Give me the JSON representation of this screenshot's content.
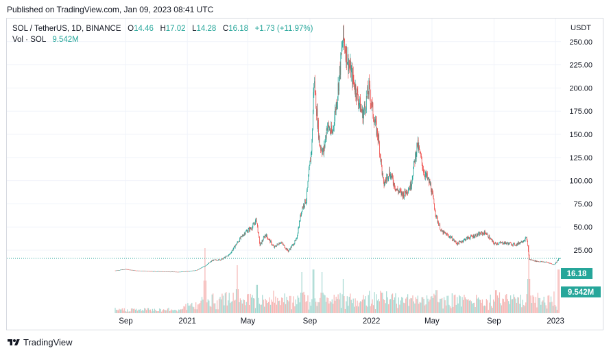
{
  "published": "Published on TradingView.com, Jan 09, 2023 08:41 UTC",
  "legend": {
    "symbol": "SOL / TetherUS, 1D, BINANCE",
    "o_label": "O",
    "o": "14.46",
    "h_label": "H",
    "h": "17.02",
    "l_label": "L",
    "l": "14.28",
    "c_label": "C",
    "c": "16.18",
    "change": "+1.73 (+11.97%)",
    "vol_label": "Vol · SOL",
    "vol": "9.542M"
  },
  "footer": {
    "brand": "TradingView"
  },
  "colors": {
    "up": "#26a69a",
    "down": "#ef5350",
    "grid": "#f0f3fa",
    "axis_text": "#131722"
  },
  "chart_data": {
    "type": "candlestick",
    "currency": "USDT",
    "y_ticks": [
      25,
      50,
      75,
      100,
      125,
      150,
      175,
      200,
      225,
      250
    ],
    "y_tick_labels": [
      "25.00",
      "50.00",
      "75.00",
      "100.00",
      "125.00",
      "150.00",
      "175.00",
      "200.00",
      "225.00",
      "250.00"
    ],
    "ylim": [
      -43,
      275
    ],
    "x_ticks": [
      {
        "label": "Sep",
        "date": "2020-09-01"
      },
      {
        "label": "2021",
        "date": "2021-01-01"
      },
      {
        "label": "May",
        "date": "2021-05-01"
      },
      {
        "label": "Sep",
        "date": "2021-09-01"
      },
      {
        "label": "2022",
        "date": "2022-01-01"
      },
      {
        "label": "May",
        "date": "2022-05-01"
      },
      {
        "label": "Sep",
        "date": "2022-09-01"
      },
      {
        "label": "2023",
        "date": "2023-01-01"
      }
    ],
    "last_price": 16.18,
    "last_price_label": "16.18",
    "last_volume_label": "9.542M",
    "price_series": [
      {
        "date": "2020-08-11",
        "close": 3.0
      },
      {
        "date": "2020-09-01",
        "close": 4.5
      },
      {
        "date": "2020-09-20",
        "close": 3.0
      },
      {
        "date": "2020-10-15",
        "close": 2.3
      },
      {
        "date": "2020-11-15",
        "close": 2.0
      },
      {
        "date": "2020-12-15",
        "close": 1.6
      },
      {
        "date": "2021-01-05",
        "close": 2.3
      },
      {
        "date": "2021-01-20",
        "close": 3.5
      },
      {
        "date": "2021-02-05",
        "close": 8.0
      },
      {
        "date": "2021-02-20",
        "close": 14.0
      },
      {
        "date": "2021-03-10",
        "close": 15.0
      },
      {
        "date": "2021-03-25",
        "close": 20.0
      },
      {
        "date": "2021-04-10",
        "close": 33.0
      },
      {
        "date": "2021-04-25",
        "close": 44.0
      },
      {
        "date": "2021-05-10",
        "close": 50.0
      },
      {
        "date": "2021-05-18",
        "close": 58.0
      },
      {
        "date": "2021-05-25",
        "close": 30.0
      },
      {
        "date": "2021-06-05",
        "close": 42.0
      },
      {
        "date": "2021-06-22",
        "close": 28.0
      },
      {
        "date": "2021-07-05",
        "close": 34.0
      },
      {
        "date": "2021-07-20",
        "close": 24.0
      },
      {
        "date": "2021-08-05",
        "close": 36.0
      },
      {
        "date": "2021-08-16",
        "close": 70.0
      },
      {
        "date": "2021-08-25",
        "close": 80.0
      },
      {
        "date": "2021-09-05",
        "close": 140.0
      },
      {
        "date": "2021-09-09",
        "close": 210.0
      },
      {
        "date": "2021-09-20",
        "close": 140.0
      },
      {
        "date": "2021-09-28",
        "close": 130.0
      },
      {
        "date": "2021-10-05",
        "close": 160.0
      },
      {
        "date": "2021-10-15",
        "close": 150.0
      },
      {
        "date": "2021-10-25",
        "close": 190.0
      },
      {
        "date": "2021-11-06",
        "close": 255.0
      },
      {
        "date": "2021-11-15",
        "close": 230.0
      },
      {
        "date": "2021-11-25",
        "close": 210.0
      },
      {
        "date": "2021-12-05",
        "close": 190.0
      },
      {
        "date": "2021-12-15",
        "close": 170.0
      },
      {
        "date": "2021-12-27",
        "close": 200.0
      },
      {
        "date": "2022-01-05",
        "close": 170.0
      },
      {
        "date": "2022-01-15",
        "close": 145.0
      },
      {
        "date": "2022-01-25",
        "close": 95.0
      },
      {
        "date": "2022-02-05",
        "close": 110.0
      },
      {
        "date": "2022-02-20",
        "close": 90.0
      },
      {
        "date": "2022-03-05",
        "close": 85.0
      },
      {
        "date": "2022-03-20",
        "close": 95.0
      },
      {
        "date": "2022-04-02",
        "close": 140.0
      },
      {
        "date": "2022-04-15",
        "close": 110.0
      },
      {
        "date": "2022-04-28",
        "close": 95.0
      },
      {
        "date": "2022-05-10",
        "close": 60.0
      },
      {
        "date": "2022-05-20",
        "close": 45.0
      },
      {
        "date": "2022-06-05",
        "close": 40.0
      },
      {
        "date": "2022-06-20",
        "close": 32.0
      },
      {
        "date": "2022-07-10",
        "close": 38.0
      },
      {
        "date": "2022-08-01",
        "close": 42.0
      },
      {
        "date": "2022-08-15",
        "close": 44.0
      },
      {
        "date": "2022-09-01",
        "close": 32.0
      },
      {
        "date": "2022-09-20",
        "close": 33.0
      },
      {
        "date": "2022-10-15",
        "close": 31.0
      },
      {
        "date": "2022-11-05",
        "close": 38.0
      },
      {
        "date": "2022-11-10",
        "close": 15.0
      },
      {
        "date": "2022-11-25",
        "close": 13.0
      },
      {
        "date": "2022-12-15",
        "close": 12.0
      },
      {
        "date": "2022-12-29",
        "close": 9.5
      },
      {
        "date": "2023-01-09",
        "close": 16.18
      }
    ],
    "volume_peaks": [
      {
        "date": "2021-02-05",
        "level": 0.95
      },
      {
        "date": "2021-04-10",
        "level": 0.7
      },
      {
        "date": "2021-05-19",
        "level": 0.55
      },
      {
        "date": "2021-08-16",
        "level": 0.6
      },
      {
        "date": "2021-09-08",
        "level": 0.85
      },
      {
        "date": "2021-09-25",
        "level": 0.6
      },
      {
        "date": "2021-11-06",
        "level": 0.5
      },
      {
        "date": "2022-01-22",
        "level": 0.4
      },
      {
        "date": "2022-05-10",
        "level": 0.45
      },
      {
        "date": "2022-09-05",
        "level": 0.45
      },
      {
        "date": "2022-11-09",
        "level": 1.0
      },
      {
        "date": "2023-01-07",
        "level": 0.85
      }
    ]
  }
}
